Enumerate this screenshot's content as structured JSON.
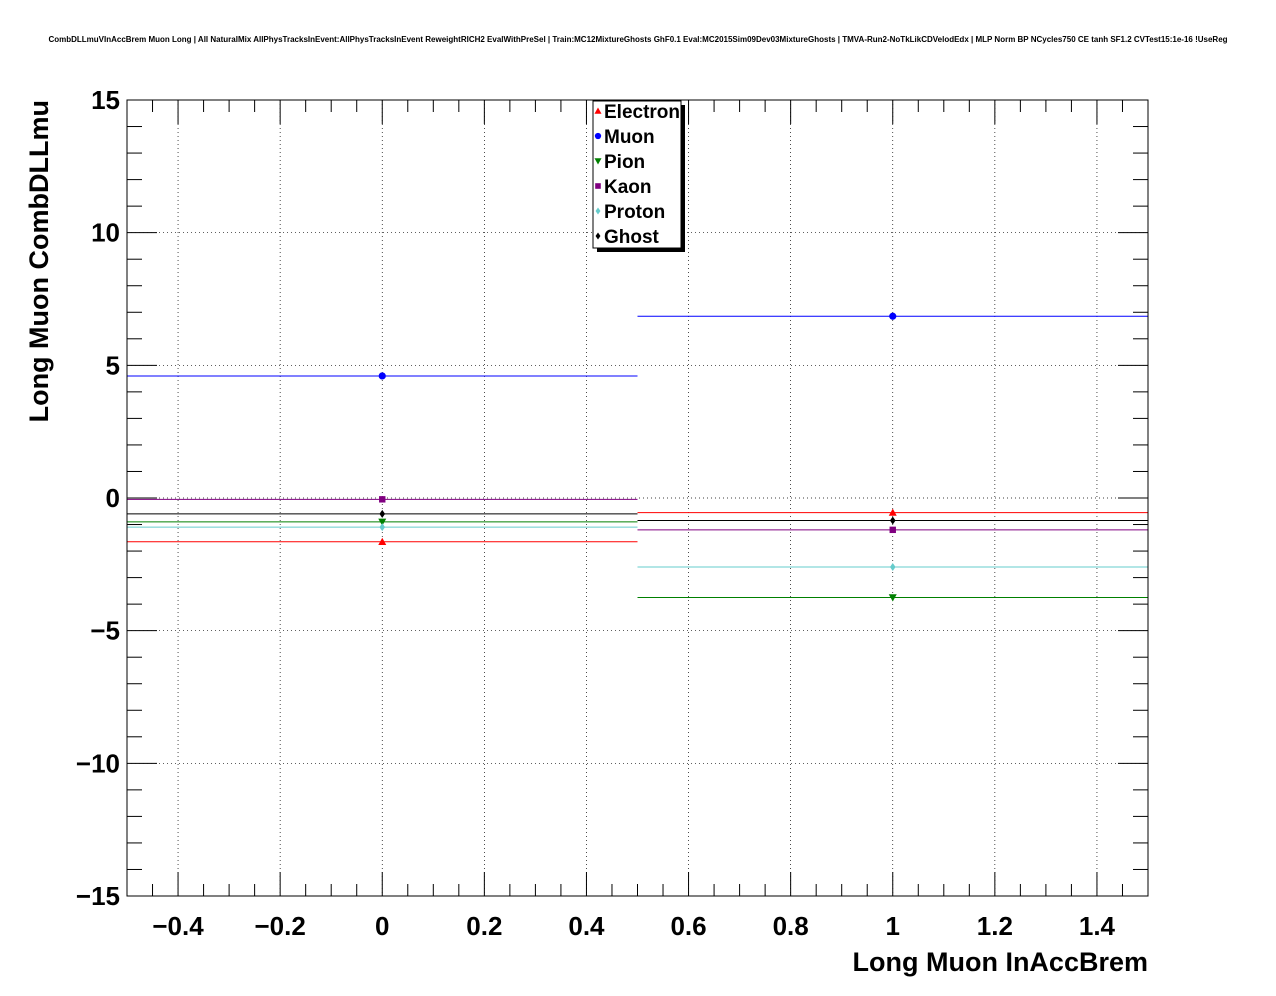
{
  "chart_data": {
    "type": "scatter",
    "title": "CombDLLmuVInAccBrem Muon Long | All NaturalMix AllPhysTracksInEvent:AllPhysTracksInEvent ReweightRICH2 EvalWithPreSel | Train:MC12MixtureGhosts GhF0.1 Eval:MC2015Sim09Dev03MixtureGhosts | TMVA-Run2-NoTkLikCDVelodEdx | MLP Norm BP NCycles750 CE tanh SF1.2 CVTest15:1e-16 !UseReg",
    "xlabel": "Long Muon InAccBrem",
    "ylabel": "Long Muon CombDLLmu",
    "xlim": [
      -0.5,
      1.5
    ],
    "ylim": [
      -15,
      15
    ],
    "x_ticks": [
      -0.4,
      -0.2,
      0,
      0.2,
      0.4,
      0.6,
      0.8,
      1,
      1.2,
      1.4
    ],
    "x_tick_labels": [
      "−0.4",
      "−0.2",
      "0",
      "0.2",
      "0.4",
      "0.6",
      "0.8",
      "1",
      "1.2",
      "1.4"
    ],
    "y_ticks": [
      -15,
      -10,
      -5,
      0,
      5,
      10,
      15
    ],
    "y_tick_labels": [
      "−15",
      "−10",
      "−5",
      "0",
      "5",
      "10",
      "15"
    ],
    "grid": true,
    "legend_position": "top-center",
    "bins": [
      {
        "center": 0,
        "low": -0.5,
        "high": 0.5
      },
      {
        "center": 1,
        "low": 0.5,
        "high": 1.5
      }
    ],
    "series": [
      {
        "name": "Electron",
        "color": "#ff0000",
        "marker": "triangle-up",
        "values": [
          -1.65,
          -0.55
        ]
      },
      {
        "name": "Muon",
        "color": "#0000ff",
        "marker": "circle",
        "values": [
          4.6,
          6.85
        ]
      },
      {
        "name": "Pion",
        "color": "#008000",
        "marker": "triangle-down",
        "values": [
          -0.9,
          -3.75
        ]
      },
      {
        "name": "Kaon",
        "color": "#800080",
        "marker": "square",
        "values": [
          -0.05,
          -1.2
        ]
      },
      {
        "name": "Proton",
        "color": "#66cccc",
        "marker": "diamond",
        "values": [
          -1.1,
          -2.6
        ]
      },
      {
        "name": "Ghost",
        "color": "#000000",
        "marker": "diamond",
        "values": [
          -0.6,
          -0.85
        ]
      }
    ]
  }
}
